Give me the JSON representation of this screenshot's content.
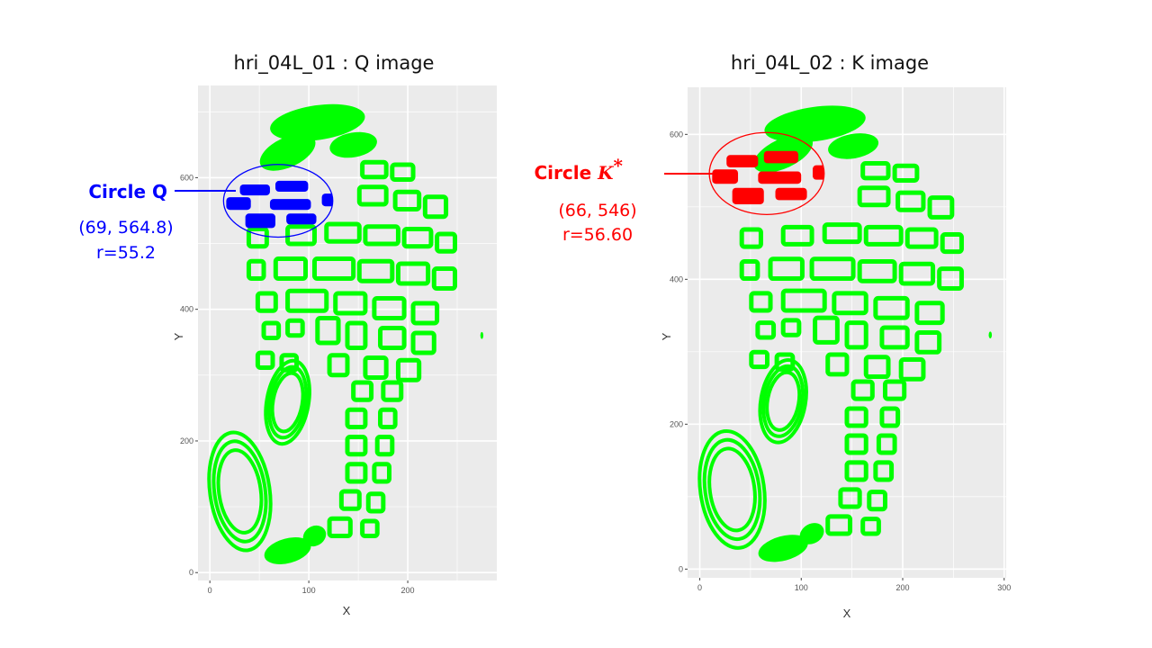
{
  "colors": {
    "panel_bg": "#ebebeb",
    "grid": "#ffffff",
    "print": "#00ff00",
    "circle_q": "#0000ff",
    "circle_k": "#ff0000"
  },
  "chart_data": [
    {
      "type": "scatter",
      "title": "hri_04L_01 : Q image",
      "xlabel": "X",
      "ylabel": "Y",
      "xlim": [
        -12,
        290
      ],
      "ylim": [
        -12,
        740
      ],
      "x_ticks": [
        0,
        100,
        200
      ],
      "y_ticks": [
        0,
        200,
        400,
        600
      ],
      "grid": true,
      "highlight_circle": {
        "cx": 69,
        "cy": 564.8,
        "r": 55.2,
        "color": "blue"
      },
      "annotation": {
        "label": "Circle Q",
        "center_text": "(69,  564.8)",
        "radius_text": "r=55.2"
      }
    },
    {
      "type": "scatter",
      "title": "hri_04L_02 : K image",
      "xlabel": "X",
      "ylabel": "Y",
      "xlim": [
        -12,
        302
      ],
      "ylim": [
        -12,
        665
      ],
      "x_ticks": [
        0,
        100,
        200,
        300
      ],
      "y_ticks": [
        0,
        200,
        400,
        600
      ],
      "grid": true,
      "highlight_circle": {
        "cx": 66,
        "cy": 546,
        "r": 56.6,
        "color": "red"
      },
      "annotation": {
        "label": "Circle ",
        "label_var": "K",
        "label_sup": "*",
        "center_text": "(66,  546)",
        "radius_text": "r=56.60"
      }
    }
  ]
}
